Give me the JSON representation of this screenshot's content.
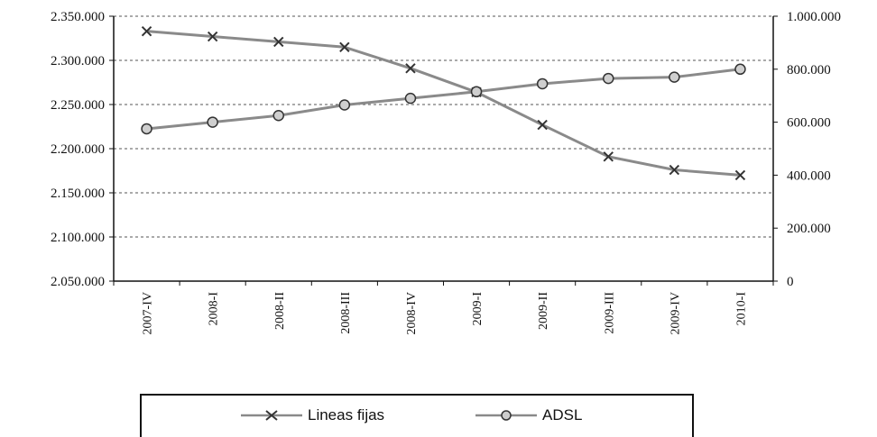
{
  "chart_data": {
    "type": "line",
    "categories": [
      "2007-IV",
      "2008-I",
      "2008-II",
      "2008-III",
      "2008-IV",
      "2009-I",
      "2009-II",
      "2009-III",
      "2009-IV",
      "2010-I"
    ],
    "series": [
      {
        "name": "Lineas fijas",
        "axis": "left",
        "color": "#8a8a8a",
        "marker": "x",
        "values": [
          2333000,
          2327000,
          2321000,
          2315000,
          2291000,
          2264000,
          2227000,
          2191000,
          2176000,
          2170000
        ]
      },
      {
        "name": "ADSL",
        "axis": "right",
        "color": "#8a8a8a",
        "marker": "circle",
        "values": [
          575000,
          600000,
          625000,
          665000,
          690000,
          715000,
          745000,
          765000,
          770000,
          800000
        ]
      }
    ],
    "y_left": {
      "ylim": [
        2050000,
        2350000
      ],
      "ticks": [
        2350000,
        2300000,
        2250000,
        2200000,
        2150000,
        2100000,
        2050000
      ],
      "tick_labels": [
        "2.350.000",
        "2.300.000",
        "2.250.000",
        "2.200.000",
        "2.150.000",
        "2.100.000",
        "2.050.000"
      ]
    },
    "y_right": {
      "ylim": [
        0,
        1000000
      ],
      "ticks": [
        1000000,
        800000,
        600000,
        400000,
        200000,
        0
      ],
      "tick_labels": [
        "1.000.000",
        "800.000",
        "600.000",
        "400.000",
        "200.000",
        "0"
      ]
    },
    "grid": true,
    "grid_style": "dashed",
    "legend_position": "bottom",
    "title": "",
    "xlabel": "",
    "ylabel": ""
  },
  "legend": {
    "entries": [
      {
        "label": "Lineas fijas",
        "marker": "x"
      },
      {
        "label": "ADSL",
        "marker": "circle"
      }
    ]
  }
}
